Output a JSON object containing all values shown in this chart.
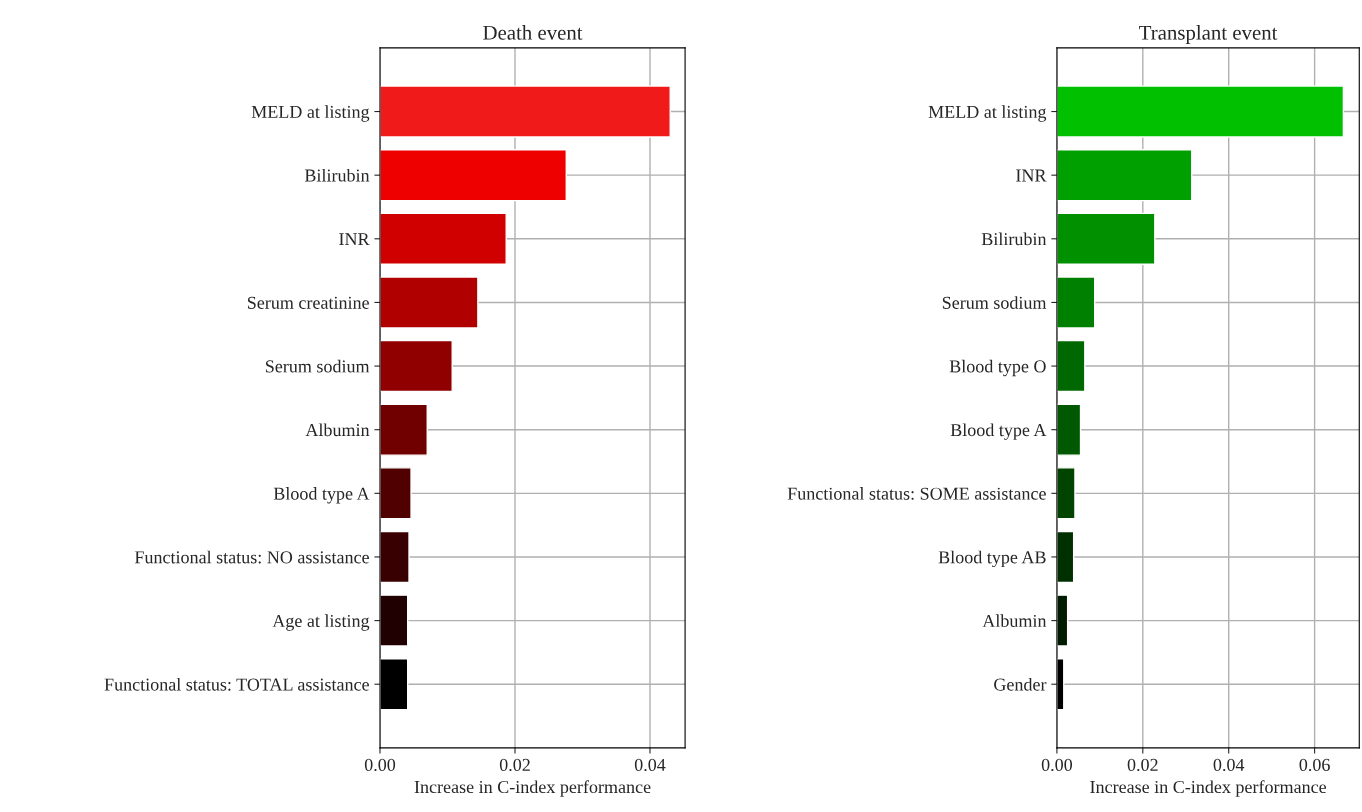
{
  "chart_data": [
    {
      "type": "bar",
      "orientation": "horizontal",
      "title": "Death event",
      "xlabel": "Increase in C-index performance",
      "categories": [
        "MELD at listing",
        "Bilirubin",
        "INR",
        "Serum creatinine",
        "Serum sodium",
        "Albumin",
        "Blood type A",
        "Functional status: NO assistance",
        "Age at listing",
        "Functional status: TOTAL assistance"
      ],
      "values": [
        0.043,
        0.0276,
        0.0187,
        0.0145,
        0.0107,
        0.007,
        0.0046,
        0.0043,
        0.0041,
        0.0041
      ],
      "colors": [
        "#f01a1a",
        "#ee0000",
        "#d00000",
        "#b00000",
        "#900000",
        "#700000",
        "#500000",
        "#380000",
        "#200000",
        "#000000"
      ],
      "xlim": [
        0,
        0.0452
      ],
      "xticks": [
        {
          "value": 0,
          "label": "0.00"
        },
        {
          "value": 0.02,
          "label": "0.02"
        },
        {
          "value": 0.04,
          "label": "0.04"
        }
      ],
      "grid": true
    },
    {
      "type": "bar",
      "orientation": "horizontal",
      "title": "Transplant event",
      "xlabel": "Increase in C-index performance",
      "categories": [
        "MELD at listing",
        "INR",
        "Bilirubin",
        "Serum sodium",
        "Blood type O",
        "Blood type A",
        "Functional status: SOME assistance",
        "Blood type AB",
        "Albumin",
        "Gender"
      ],
      "values": [
        0.0667,
        0.0314,
        0.0228,
        0.0088,
        0.0065,
        0.0055,
        0.0042,
        0.0039,
        0.0025,
        0.0016
      ],
      "colors": [
        "#00c000",
        "#00a000",
        "#009000",
        "#008000",
        "#006800",
        "#005800",
        "#004400",
        "#003000",
        "#001c00",
        "#000000"
      ],
      "xlim": [
        0,
        0.0704
      ],
      "xticks": [
        {
          "value": 0,
          "label": "0.00"
        },
        {
          "value": 0.02,
          "label": "0.02"
        },
        {
          "value": 0.04,
          "label": "0.04"
        },
        {
          "value": 0.06,
          "label": "0.06"
        }
      ],
      "grid": true
    }
  ]
}
